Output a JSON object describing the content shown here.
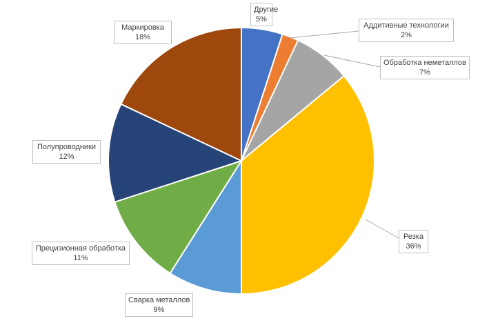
{
  "chart_data": {
    "type": "pie",
    "start_angle_deg": 0,
    "direction": "clockwise",
    "slices": [
      {
        "label": "Другие",
        "value": 5,
        "display": "5%",
        "color": "#4472C4"
      },
      {
        "label": "Аддитивные технологии",
        "value": 2,
        "display": "2%",
        "color": "#ED7D31"
      },
      {
        "label": "Обработка неметаллов",
        "value": 7,
        "display": "7%",
        "color": "#A5A5A5"
      },
      {
        "label": "Резка",
        "value": 36,
        "display": "36%",
        "color": "#FFC000"
      },
      {
        "label": "Сварка металлов",
        "value": 9,
        "display": "9%",
        "color": "#5B9BD5"
      },
      {
        "label": "Прецизионная обработка",
        "value": 11,
        "display": "11%",
        "color": "#70AD47"
      },
      {
        "label": "Полупроводники",
        "value": 12,
        "display": "12%",
        "color": "#264478"
      },
      {
        "label": "Маркировка",
        "value": 18,
        "display": "18%",
        "color": "#9E480E"
      }
    ],
    "legend": "none"
  }
}
